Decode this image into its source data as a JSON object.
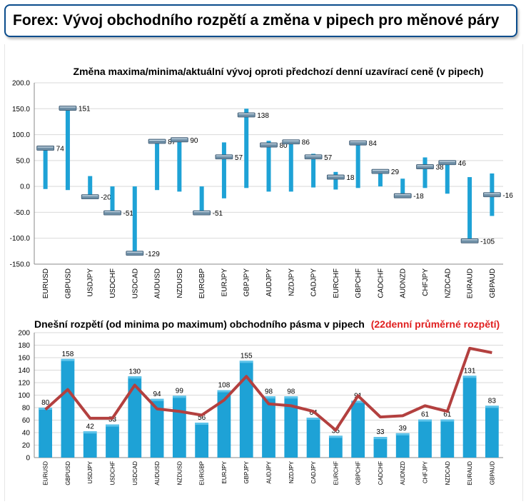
{
  "header": {
    "title": "Forex: Vývoj obchodního rozpětí a změna v pipech pro měnové páry"
  },
  "colors": {
    "bar": "#1ea2d6",
    "line": "#b3403f",
    "header_border": "#0a4c8c",
    "avg_title": "#e02020"
  },
  "chart_data": [
    {
      "type": "bar",
      "subtype": "floating-range-with-marker",
      "title": "Změna maxima/minima/aktuální vývoj oproti předchozí denní uzavírací ceně (v pipech)",
      "ylim": [
        -150,
        200
      ],
      "yticks": [
        "200.0",
        "150.0",
        "100.0",
        "50.0",
        "0.0",
        "-50.0",
        "-100.0",
        "-150.0"
      ],
      "ytick_values": [
        200,
        150,
        100,
        50,
        0,
        -50,
        -100,
        -150
      ],
      "grid": true,
      "categories": [
        "EURUSD",
        "GBPUSD",
        "USDJPY",
        "USDCHF",
        "USDCAD",
        "AUDUSD",
        "NZDUSD",
        "EURGBP",
        "EURJPY",
        "GBPJPY",
        "AUDJPY",
        "NZDJPY",
        "CADJPY",
        "EURCHF",
        "GBPCHF",
        "CADCHF",
        "AUDNZD",
        "CHFJPY",
        "NZDCAD",
        "EURAUD",
        "GBPAUD"
      ],
      "series": [
        {
          "role": "high",
          "values": [
            74,
            152,
            20,
            0,
            0,
            87,
            93,
            0,
            85,
            150,
            88,
            87,
            63,
            28,
            86,
            30,
            15,
            56,
            46,
            18,
            25
          ]
        },
        {
          "role": "low",
          "values": [
            -5,
            -7,
            -22,
            -53,
            -132,
            -7,
            -10,
            -53,
            -23,
            -3,
            -10,
            -10,
            -2,
            -6,
            -3,
            0,
            -22,
            -3,
            -14,
            -107,
            -57
          ]
        },
        {
          "role": "current",
          "values": [
            74,
            151,
            -20,
            -51,
            -129,
            87,
            90,
            -51,
            57,
            138,
            80,
            86,
            57,
            18,
            84,
            29,
            -18,
            38,
            46,
            -105,
            -16
          ]
        }
      ],
      "data_labels": [
        "74",
        "151",
        "-20",
        "-51",
        "-129",
        "87",
        "90",
        "-51",
        "57",
        "138",
        "80",
        "86",
        "57",
        "18",
        "84",
        "29",
        "-18",
        "38",
        "46",
        "-105",
        "-16"
      ]
    },
    {
      "type": "bar",
      "title": "Dnešní rozpětí (od minima po maximum) obchodního pásma v pipech",
      "title_suffix": "(22denní průměrné rozpětí)",
      "ylim": [
        0,
        200
      ],
      "yticks": [
        "200",
        "180",
        "160",
        "140",
        "120",
        "100",
        "80",
        "60",
        "40",
        "20",
        "0"
      ],
      "ytick_values": [
        200,
        180,
        160,
        140,
        120,
        100,
        80,
        60,
        40,
        20,
        0
      ],
      "grid": true,
      "categories": [
        "EURUSD",
        "GBPUSD",
        "USDJPY",
        "USDCHF",
        "USDCAD",
        "AUDUSD",
        "NZDUSD",
        "EURGBP",
        "EURJPY",
        "GBPJPY",
        "AUDJPY",
        "NZDJPY",
        "CADJPY",
        "EURCHF",
        "GBPCHF",
        "CADCHF",
        "AUDNZD",
        "CHFJPY",
        "NZDCAD",
        "EURAUD",
        "GBPAUD"
      ],
      "series": [
        {
          "values": [
            80,
            158,
            42,
            53,
            130,
            94,
            99,
            56,
            108,
            155,
            98,
            98,
            64,
            35,
            91,
            33,
            39,
            61,
            61,
            131,
            83
          ]
        },
        {
          "type": "line",
          "values": [
            77,
            109,
            63,
            63,
            116,
            78,
            74,
            68,
            92,
            130,
            86,
            83,
            74,
            44,
            99,
            65,
            67,
            83,
            74,
            175,
            168
          ]
        }
      ],
      "data_labels": [
        "80",
        "158",
        "42",
        "53",
        "130",
        "94",
        "99",
        "56",
        "108",
        "155",
        "98",
        "98",
        "64",
        "35",
        "91",
        "33",
        "39",
        "61",
        "61",
        "131",
        "83"
      ]
    }
  ]
}
